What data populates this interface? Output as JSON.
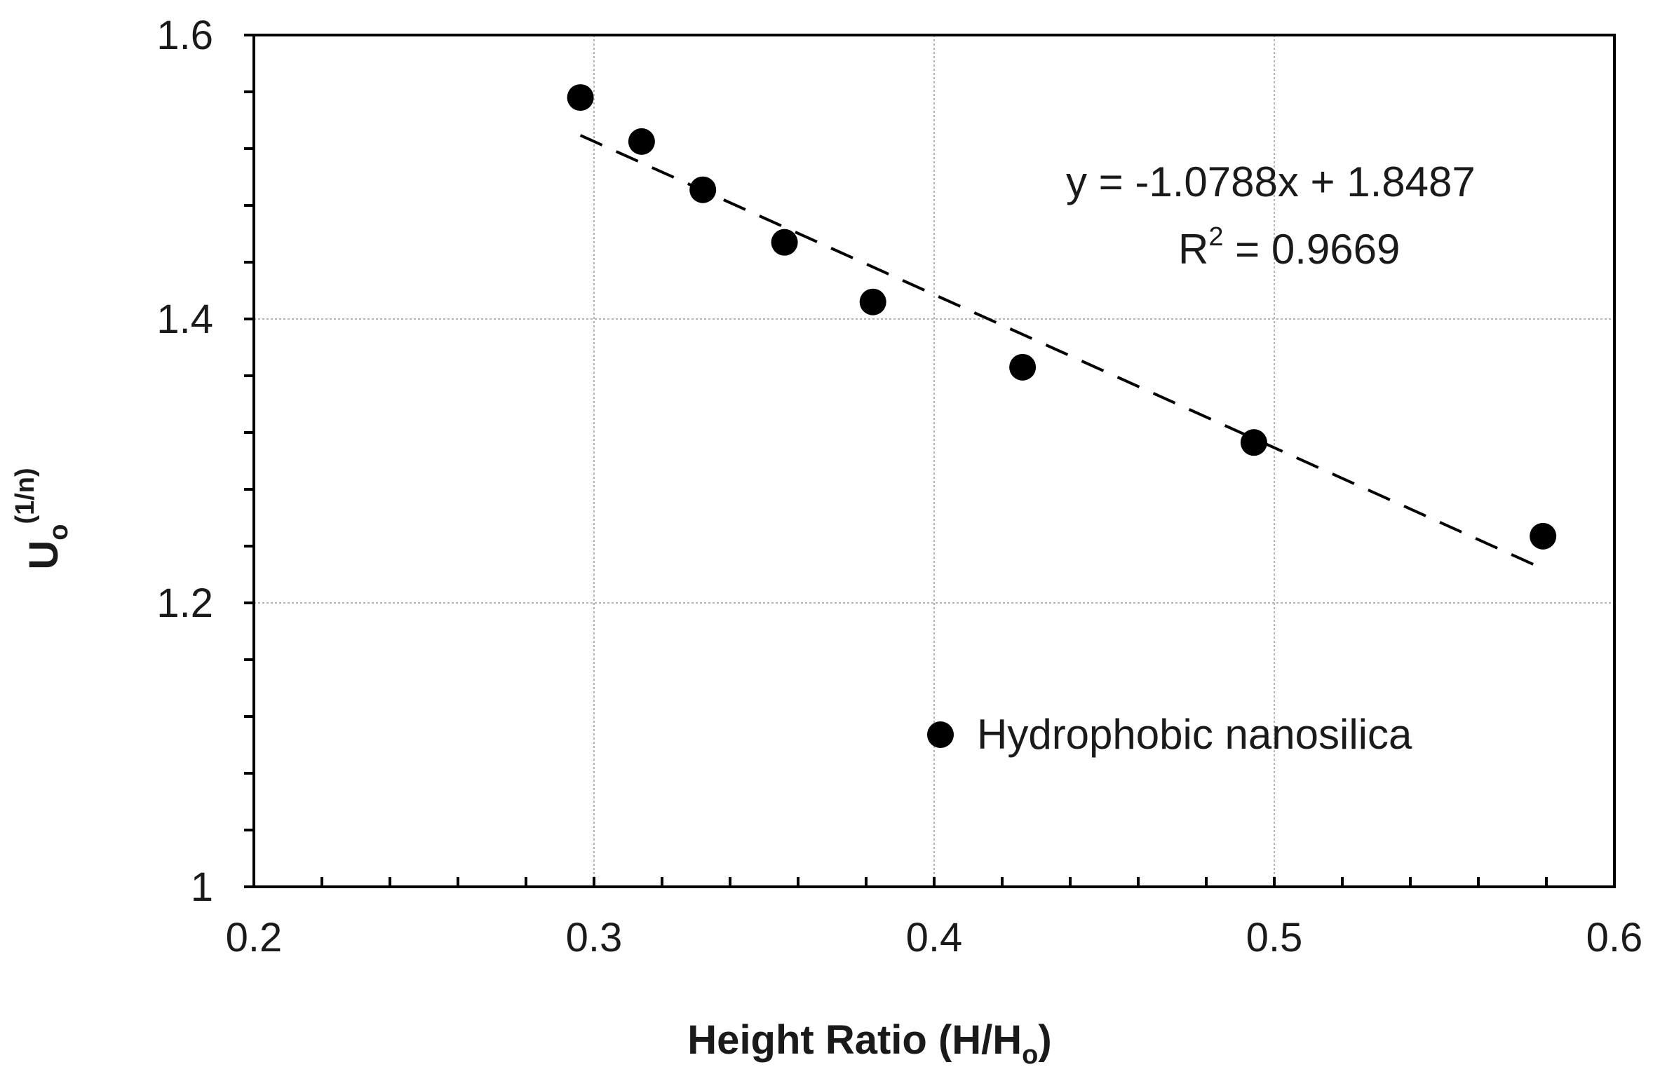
{
  "chart_data": {
    "type": "scatter",
    "title": "",
    "xlabel": "Height Ratio (H/H",
    "xlabel_sub": "o",
    "xlabel_close": ")",
    "ylabel": "U",
    "ylabel_sub": "o",
    "ylabel_sup": "(1/n)",
    "xlim": [
      0.2,
      0.6
    ],
    "ylim": [
      1.0,
      1.6
    ],
    "x_ticks": [
      0.2,
      0.3,
      0.4,
      0.5,
      0.6
    ],
    "x_tick_labels": [
      "0.2",
      "0.3",
      "0.4",
      "0.5",
      "0.6"
    ],
    "y_ticks": [
      1.0,
      1.2,
      1.4,
      1.6
    ],
    "y_tick_labels": [
      "1",
      "1.2",
      "1.4",
      "1.6"
    ],
    "x_minor_step": 0.02,
    "y_minor_step": 0.04,
    "grid": true,
    "legend_position": "bottom-right",
    "series": [
      {
        "name": "Hydrophobic nanosilica",
        "marker": "filled-circle",
        "color": "#000000",
        "x": [
          0.296,
          0.314,
          0.332,
          0.356,
          0.382,
          0.426,
          0.494,
          0.579
        ],
        "y": [
          1.556,
          1.525,
          1.491,
          1.454,
          1.412,
          1.366,
          1.313,
          1.247
        ]
      }
    ],
    "trendline": {
      "type": "linear",
      "style": "dashed",
      "slope": -1.0788,
      "intercept": 1.8487,
      "x_range": [
        0.296,
        0.579
      ],
      "equation_label": "y = -1.0788x + 1.8487",
      "r2_prefix": "R",
      "r2_exponent": "2",
      "r2_suffix": " = 0.9669"
    }
  }
}
